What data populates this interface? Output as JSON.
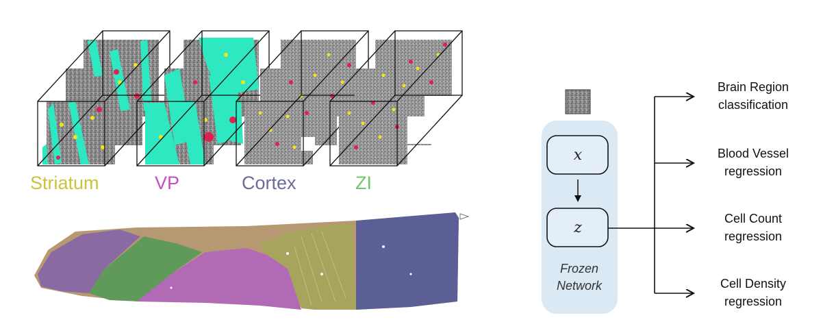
{
  "regions": [
    {
      "label": "Striatum",
      "color": "#c8c43c"
    },
    {
      "label": "VP",
      "color": "#c24fc4"
    },
    {
      "label": "Cortex",
      "color": "#6b6b9a"
    },
    {
      "label": "ZI",
      "color": "#6cc96a"
    }
  ],
  "colors": {
    "vessel": "#2de8c0",
    "cell_yellow": "#f2e41a",
    "cell_red": "#e0204e",
    "tissue_gray": "#8c8c8c",
    "network_panel": "#dbe9f4",
    "section_purple": "#8a6aa3",
    "section_green": "#5f9a5a",
    "section_magenta": "#b16bb5",
    "section_olive": "#a7a45d",
    "section_navy": "#5b5f95",
    "section_tan": "#b69872"
  },
  "network": {
    "input_node": "x",
    "latent_node": "z",
    "caption_line1": "Frozen",
    "caption_line2": "Network"
  },
  "tasks": [
    {
      "line1": "Brain Region",
      "line2": "classification"
    },
    {
      "line1": "Blood Vessel",
      "line2": "regression"
    },
    {
      "line1": "Cell Count",
      "line2": "regression"
    },
    {
      "line1": "Cell Density",
      "line2": "regression"
    }
  ],
  "icons": [
    "input-patch-icon",
    "section-marker-icon"
  ]
}
